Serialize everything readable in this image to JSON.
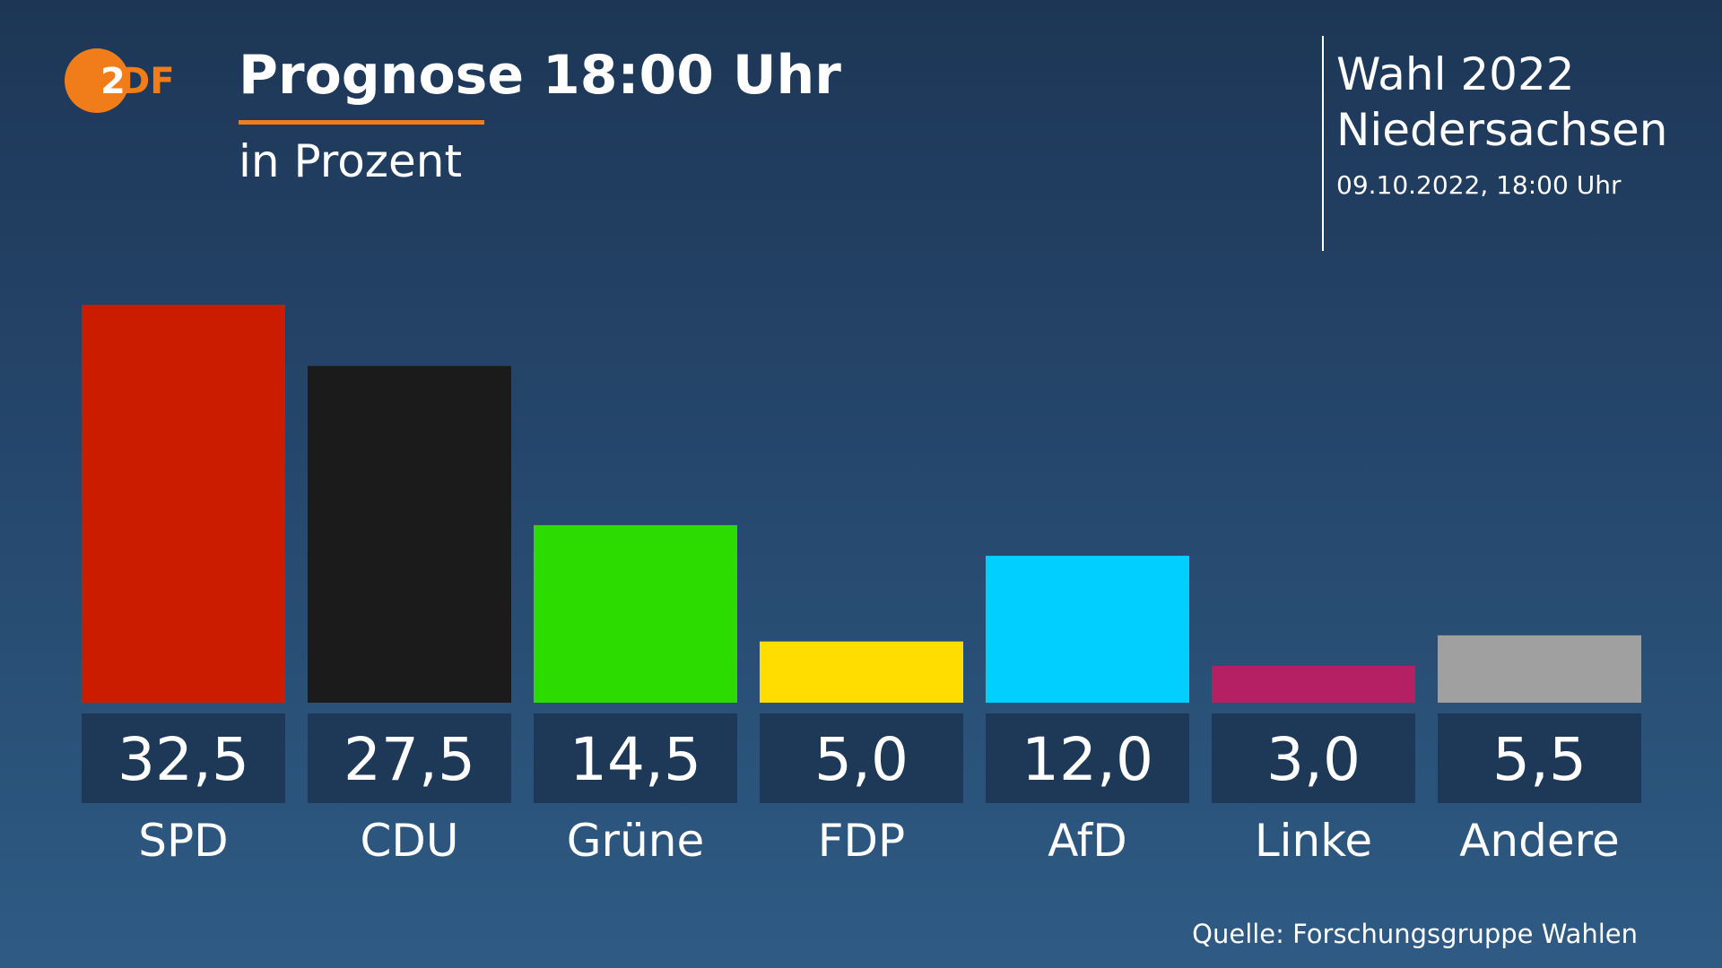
{
  "header": {
    "logo_text": "ZDF",
    "title": "Prognose 18:00 Uhr",
    "subtitle": "in Prozent",
    "election_line1": "Wahl 2022",
    "election_line2": "Niedersachsen",
    "datetime": "09.10.2022, 18:00 Uhr"
  },
  "footer": {
    "source": "Quelle: Forschungsgruppe Wahlen"
  },
  "colors": {
    "accent": "#f07d1a",
    "label_box": "#1e3858"
  },
  "chart_data": {
    "type": "bar",
    "title": "Prognose 18:00 Uhr",
    "subtitle": "in Prozent",
    "categories": [
      "SPD",
      "CDU",
      "Grüne",
      "FDP",
      "AfD",
      "Linke",
      "Andere"
    ],
    "values": [
      32.5,
      27.5,
      14.5,
      5.0,
      12.0,
      3.0,
      5.5
    ],
    "value_labels": [
      "32,5",
      "27,5",
      "14,5",
      "5,0",
      "12,0",
      "3,0",
      "5,5"
    ],
    "colors": [
      "#cc1c00",
      "#1b1b1b",
      "#2cdb00",
      "#ffdd00",
      "#00cfff",
      "#b52064",
      "#a0a0a0"
    ],
    "ylim": [
      0,
      32.5
    ],
    "grid": false,
    "xlabel": "",
    "ylabel": ""
  }
}
